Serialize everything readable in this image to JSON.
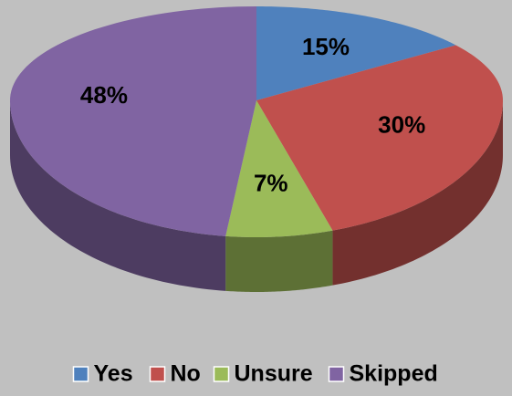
{
  "chart_data": {
    "type": "pie3d",
    "categories": [
      "Yes",
      "No",
      "Unsure",
      "Skipped"
    ],
    "values": [
      15,
      30,
      7,
      48
    ],
    "value_labels": [
      "15%",
      "30%",
      "7%",
      "48%"
    ],
    "colors": [
      "#4f81bd",
      "#c0504d",
      "#9bbb59",
      "#8064a2"
    ],
    "legend": "bottom"
  }
}
